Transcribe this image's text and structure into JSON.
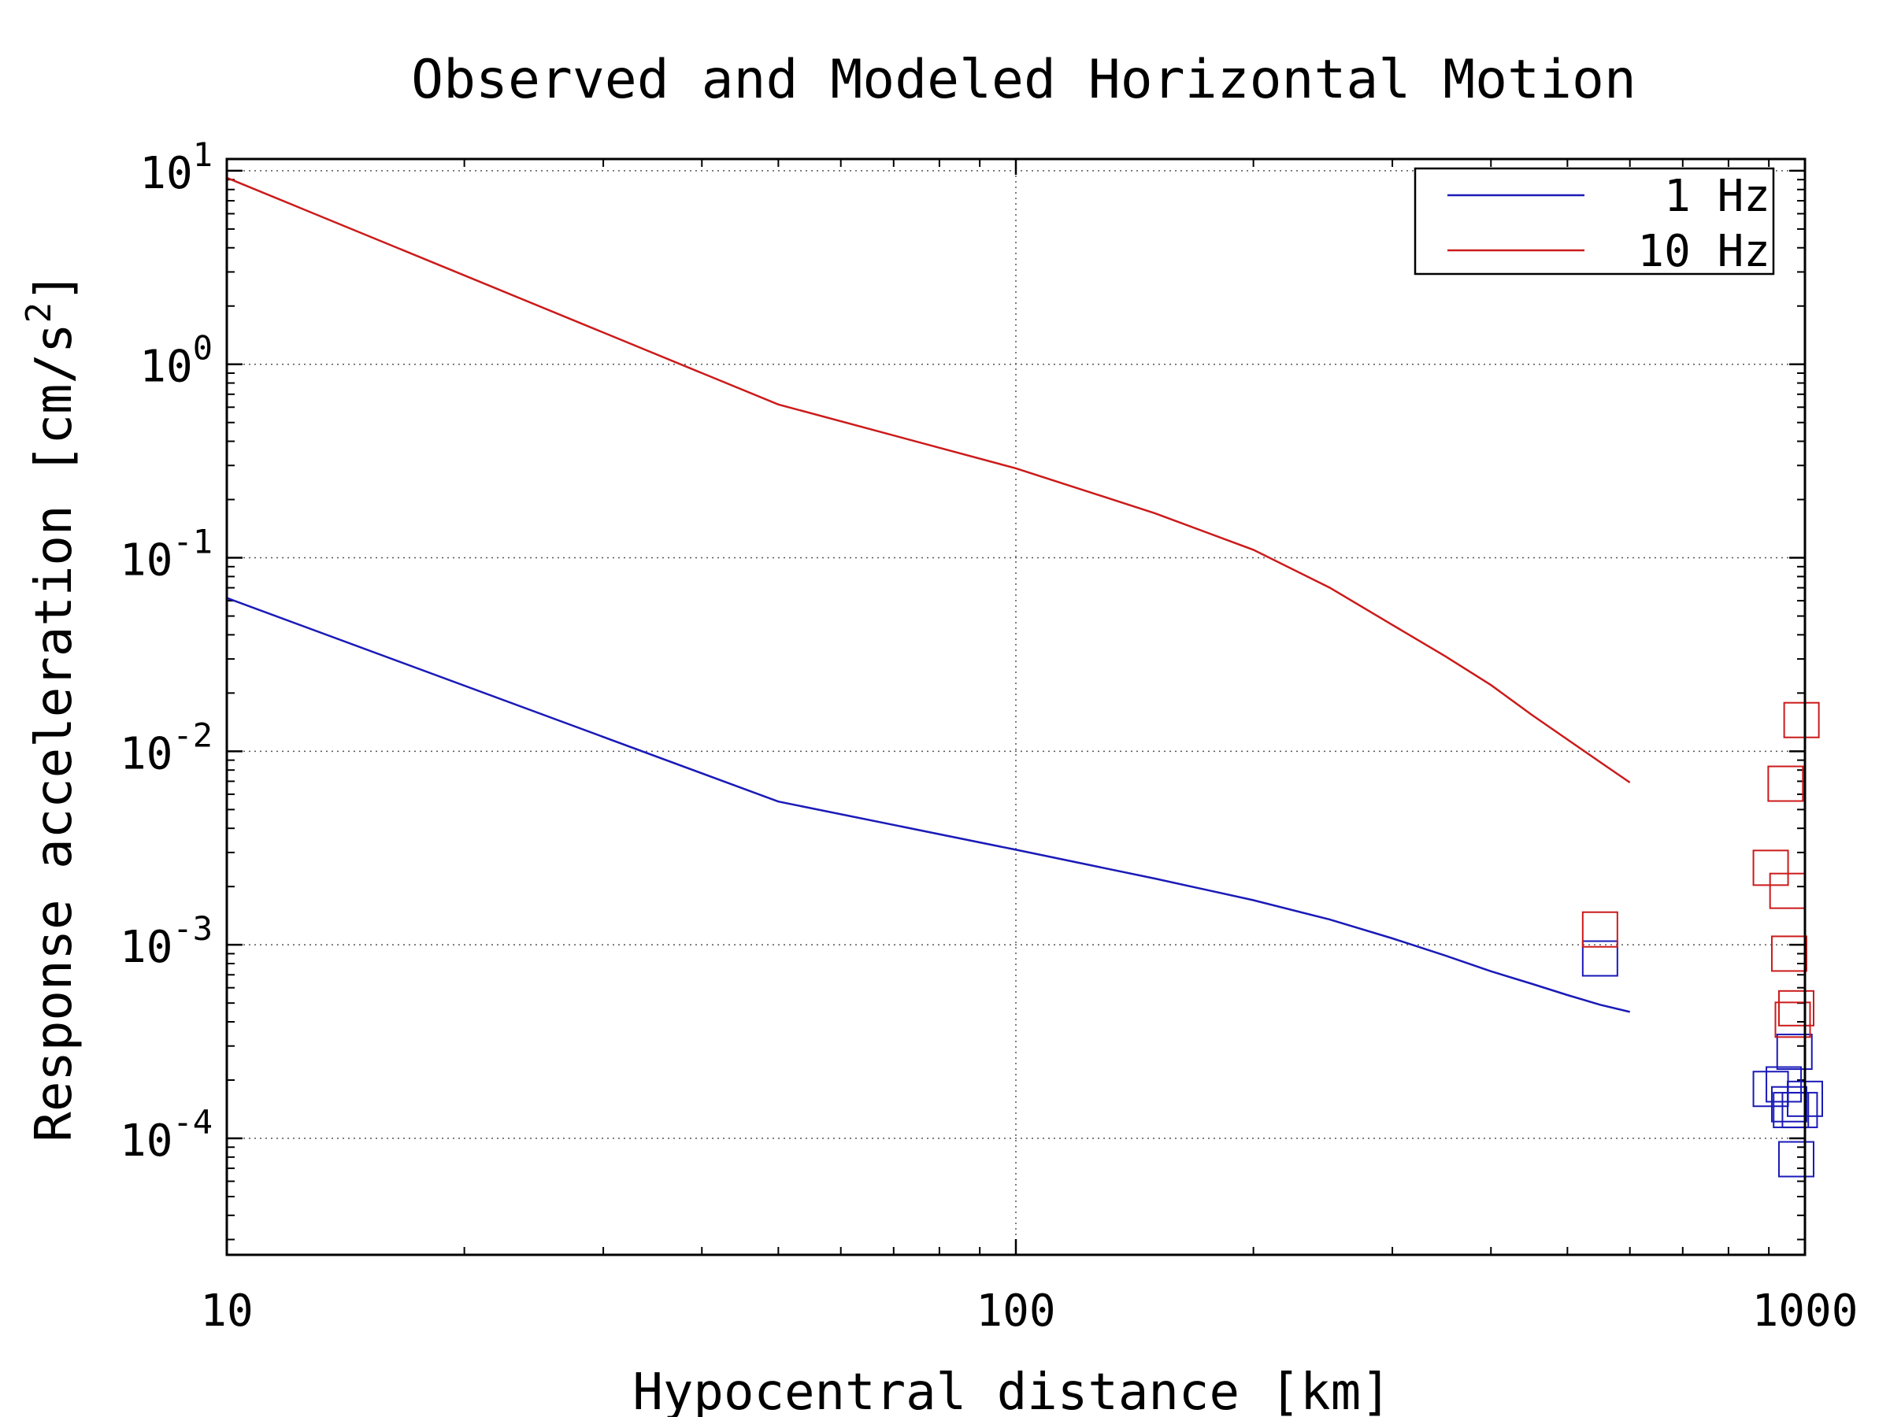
{
  "chart_data": {
    "type": "line",
    "title": "Observed and Modeled Horizontal Motion",
    "xlabel": "Hypocentral distance [km]",
    "ylabel": "Response acceleration [cm/s",
    "ylabel_sup": "2",
    "ylabel_end": "]",
    "xscale": "log",
    "yscale": "log",
    "xlim": [
      10,
      1000
    ],
    "ylim": [
      2.5e-05,
      11.5
    ],
    "grid": true,
    "legend_position": "top-right",
    "xticks": [
      {
        "value": 10,
        "label": "10"
      },
      {
        "value": 100,
        "label": "100"
      },
      {
        "value": 1000,
        "label": "1000"
      }
    ],
    "yticks": [
      {
        "value": 10,
        "base": "10",
        "exp": "1"
      },
      {
        "value": 1,
        "base": "10",
        "exp": "0"
      },
      {
        "value": 0.1,
        "base": "10",
        "exp": "-1"
      },
      {
        "value": 0.01,
        "base": "10",
        "exp": "-2"
      },
      {
        "value": 0.001,
        "base": "10",
        "exp": "-3"
      },
      {
        "value": 0.0001,
        "base": "10",
        "exp": "-4"
      }
    ],
    "series": [
      {
        "name": "1 Hz",
        "color": "#1a1ab8",
        "kind": "line",
        "x": [
          10,
          50,
          100,
          150,
          200,
          250,
          300,
          350,
          400,
          450,
          500,
          550,
          600
        ],
        "y": [
          0.062,
          0.0055,
          0.0031,
          0.0022,
          0.0017,
          0.00135,
          0.00108,
          0.00088,
          0.00073,
          0.00063,
          0.00055,
          0.00049,
          0.00045
        ]
      },
      {
        "name": "10 Hz",
        "color": "#cc1a1a",
        "kind": "line",
        "x": [
          10,
          50,
          100,
          150,
          200,
          250,
          300,
          350,
          400,
          450,
          500,
          550,
          600
        ],
        "y": [
          9.2,
          0.62,
          0.29,
          0.17,
          0.11,
          0.07,
          0.045,
          0.031,
          0.022,
          0.0155,
          0.0115,
          0.0088,
          0.0069
        ]
      },
      {
        "kind": "scatter",
        "color": "#1a1ab8",
        "x": [
          550,
          905,
          940,
          955,
          960,
          970,
          975,
          985,
          1000
        ],
        "y": [
          0.00085,
          0.00018,
          0.00019,
          0.00015,
          0.00014,
          0.00028,
          7.8e-05,
          0.00014,
          0.00016
        ]
      },
      {
        "kind": "scatter",
        "color": "#cc1a1a",
        "x": [
          550,
          905,
          945,
          950,
          955,
          965,
          975,
          990
        ],
        "y": [
          0.0012,
          0.0025,
          0.0068,
          0.0019,
          0.0009,
          0.00041,
          0.00047,
          0.0145
        ]
      }
    ]
  }
}
